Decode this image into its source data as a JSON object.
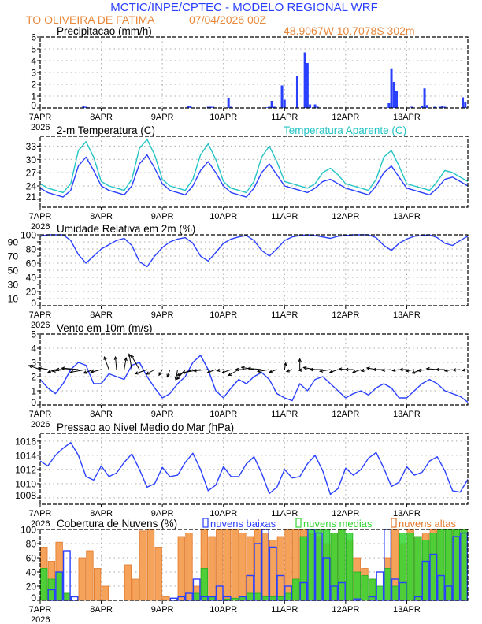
{
  "header": {
    "title": "MCTIC/INPE/CPTEC - MODELO REGIONAL WRF",
    "station": "TO OLIVEIRA DE FATIMA",
    "run": "07/04/2026 00Z",
    "location": "48.9067W 10.7078S 302m"
  },
  "colors": {
    "blue": "#2a40ff",
    "cyan": "#22c4c4",
    "orange_fill": "#f5a25a",
    "orange_edge": "#e2782a",
    "green": "#33d633",
    "black": "#000000",
    "grid": "#aaaaaa"
  },
  "x_axis": {
    "days": [
      "7APR",
      "8APR",
      "9APR",
      "10APR",
      "11APR",
      "12APR",
      "13APR"
    ],
    "year": "2026",
    "hours_total": 168,
    "step_hours": 3
  },
  "chart_data": [
    {
      "type": "bar",
      "title": "Precipitacao (mm/h)",
      "ylim": [
        0,
        6
      ],
      "yticks": [
        0,
        1,
        2,
        3,
        4,
        5,
        6
      ],
      "bars": [
        [
          17,
          0.2
        ],
        [
          18,
          0.1
        ],
        [
          19,
          0.05
        ],
        [
          58,
          0.15
        ],
        [
          59,
          0.2
        ],
        [
          66,
          0.1
        ],
        [
          67,
          0.1
        ],
        [
          68,
          0.1
        ],
        [
          74,
          0.85
        ],
        [
          75,
          0.1
        ],
        [
          89,
          0.05
        ],
        [
          90,
          0.1
        ],
        [
          91,
          0.6
        ],
        [
          92,
          0.1
        ],
        [
          95,
          1.9
        ],
        [
          96,
          0.7
        ],
        [
          101,
          2.7
        ],
        [
          104,
          4.7
        ],
        [
          105,
          3.8
        ],
        [
          106,
          0.3
        ],
        [
          108,
          0.3
        ],
        [
          109,
          0.1
        ],
        [
          134,
          0.05
        ],
        [
          137,
          0.4
        ],
        [
          138,
          3.35
        ],
        [
          139,
          2.2
        ],
        [
          140,
          1.45
        ],
        [
          146,
          0.1
        ],
        [
          150,
          0.2
        ],
        [
          151,
          1.65
        ],
        [
          152,
          0.25
        ],
        [
          155,
          0.1
        ],
        [
          157,
          0.1
        ],
        [
          158,
          0.2
        ],
        [
          159,
          0.1
        ],
        [
          166,
          0.9
        ],
        [
          167,
          0.5
        ]
      ]
    },
    {
      "type": "line",
      "title": "2-m Temperatura (C)",
      "legend2": "Temperatura Aparente (C)",
      "ylim": [
        19.2,
        35.2
      ],
      "yticks": [
        21,
        24,
        27,
        30,
        33
      ],
      "series": [
        {
          "name": "2-m Temperatura (C)",
          "values": [
            23.5,
            22.5,
            22,
            21.5,
            23,
            28.5,
            30.5,
            27.5,
            24,
            23,
            22.5,
            22,
            24,
            29,
            31,
            28,
            24.5,
            23,
            22.5,
            22,
            24,
            27.5,
            29.5,
            27,
            24,
            22.5,
            22,
            21.5,
            23.5,
            27,
            29,
            26.5,
            24,
            23.5,
            23,
            22.5,
            23.5,
            25,
            25.5,
            24.5,
            23.5,
            23,
            22.5,
            22,
            24,
            27,
            28.5,
            26,
            23.5,
            23,
            22.5,
            22,
            23.5,
            25.5,
            26,
            25,
            24
          ]
        },
        {
          "name": "Temperatura Aparente (C)",
          "values": [
            24.5,
            23.5,
            23,
            22.5,
            24.5,
            32,
            34,
            30.5,
            25,
            24,
            23.5,
            23,
            25.5,
            32.5,
            34.5,
            31,
            25.5,
            24,
            23.5,
            23,
            25.5,
            31,
            33.5,
            30,
            25,
            23.5,
            23,
            22.5,
            25,
            30.5,
            33,
            29.5,
            25,
            24.5,
            24,
            23.5,
            24.5,
            27,
            28,
            26.5,
            24.5,
            24,
            23.5,
            23,
            25.5,
            30.5,
            32,
            28.5,
            24.5,
            24,
            23.5,
            23,
            25,
            27.5,
            27,
            26,
            25
          ]
        }
      ]
    },
    {
      "type": "line",
      "title": "Umidade Relativa em 2m (%)",
      "ylim": [
        0,
        100
      ],
      "yticks": [
        0,
        10,
        20,
        30,
        40,
        50,
        60,
        70,
        80,
        90,
        100
      ],
      "values": [
        98,
        100,
        100,
        100,
        92,
        72,
        60,
        70,
        80,
        86,
        92,
        95,
        85,
        62,
        55,
        70,
        82,
        90,
        94,
        96,
        88,
        70,
        63,
        75,
        88,
        94,
        97,
        99,
        92,
        78,
        70,
        80,
        92,
        97,
        99,
        100,
        99,
        97,
        95,
        98,
        99,
        100,
        100,
        100,
        96,
        85,
        78,
        88,
        94,
        98,
        99,
        100,
        96,
        88,
        85,
        92,
        98
      ]
    },
    {
      "type": "line",
      "title": "Vento em 10m (m/s)",
      "ylim": [
        0,
        5
      ],
      "yticks": [
        0,
        1,
        2,
        3,
        4,
        5
      ],
      "values": [
        1.8,
        1.2,
        0.8,
        1.5,
        2.5,
        3,
        2.8,
        1.5,
        1.5,
        2.2,
        2.0,
        1.8,
        2.8,
        3.0,
        2.0,
        1.2,
        0.5,
        0.8,
        1.5,
        2.0,
        3.0,
        3.5,
        2.5,
        1.0,
        0.5,
        1.2,
        1.8,
        1.5,
        2.0,
        2.3,
        1.8,
        0.8,
        0.5,
        0.3,
        1.5,
        1.0,
        1.8,
        2.0,
        1.5,
        1.0,
        0.5,
        0.8,
        1.0,
        0.7,
        1.2,
        1.5,
        1.2,
        0.5,
        0.5,
        1.0,
        1.5,
        1.8,
        1.5,
        1.0,
        0.8,
        0.6,
        0.2
      ],
      "arrow_angle_deg": [
        160,
        170,
        200,
        190,
        180,
        175,
        190,
        200,
        195,
        110,
        95,
        80,
        100,
        120,
        200,
        210,
        240,
        250,
        260,
        230,
        200,
        190,
        185,
        200,
        190,
        200,
        210,
        180,
        170,
        175,
        190,
        200,
        80,
        200,
        90,
        185,
        170,
        180,
        190,
        200,
        175,
        180,
        200,
        190,
        170,
        180,
        185,
        190,
        180,
        190,
        200,
        185,
        175,
        180,
        190,
        185,
        190
      ]
    },
    {
      "type": "line",
      "title": "Pressao ao Nivel Medio do Mar (hPa)",
      "ylim": [
        1007.1,
        1017.1
      ],
      "yticks": [
        1008,
        1010,
        1012,
        1014,
        1016
      ],
      "values": [
        1013.2,
        1012.5,
        1014,
        1015,
        1015.8,
        1014,
        1011,
        1010.5,
        1012.5,
        1011,
        1011.5,
        1013,
        1014.2,
        1012,
        1009.5,
        1010,
        1012.3,
        1011,
        1011.2,
        1013,
        1014.3,
        1012,
        1009,
        1009.8,
        1012.4,
        1011,
        1011,
        1012.8,
        1013.8,
        1011.5,
        1008.6,
        1009.5,
        1012,
        1010.8,
        1011,
        1012.8,
        1014,
        1011.8,
        1008.5,
        1009.3,
        1012.2,
        1011.2,
        1012,
        1013.6,
        1014.4,
        1012.2,
        1009.6,
        1010.2,
        1012.4,
        1011.2,
        1011.6,
        1013.2,
        1013.8,
        1011.8,
        1009,
        1008.8,
        1010.6
      ]
    },
    {
      "type": "bar",
      "title": "Cobertura de Nuvens (%)",
      "ylim": [
        0,
        100
      ],
      "yticks": [
        0,
        20,
        40,
        60,
        80,
        100
      ],
      "series": [
        {
          "name": "nuvens altas",
          "values": [
            75,
            55,
            82,
            10,
            0,
            60,
            70,
            45,
            20,
            0,
            0,
            50,
            30,
            98,
            100,
            75,
            5,
            0,
            90,
            95,
            20,
            100,
            90,
            100,
            100,
            100,
            95,
            90,
            100,
            95,
            85,
            90,
            100,
            100,
            100,
            95,
            90,
            80,
            95,
            100,
            85,
            60,
            45,
            30,
            0,
            60,
            100,
            80,
            100,
            90,
            95,
            100,
            100,
            100,
            100,
            100
          ]
        },
        {
          "name": "nuvens medias",
          "values": [
            45,
            30,
            40,
            10,
            0,
            0,
            0,
            0,
            0,
            0,
            0,
            0,
            0,
            0,
            0,
            0,
            0,
            0,
            0,
            0,
            10,
            45,
            5,
            0,
            2,
            3,
            5,
            10,
            10,
            5,
            5,
            5,
            10,
            30,
            90,
            100,
            100,
            100,
            95,
            100,
            95,
            40,
            35,
            30,
            20,
            45,
            20,
            95,
            95,
            90,
            85,
            95,
            100,
            100,
            100,
            100
          ]
        },
        {
          "name": "nuvens baixas",
          "values": [
            0,
            15,
            40,
            70,
            5,
            0,
            0,
            0,
            0,
            0,
            0,
            0,
            0,
            0,
            0,
            0,
            0,
            3,
            5,
            10,
            30,
            5,
            5,
            20,
            5,
            0,
            5,
            35,
            80,
            100,
            75,
            35,
            20,
            0,
            25,
            100,
            95,
            60,
            20,
            25,
            0,
            2,
            0,
            5,
            40,
            100,
            30,
            25,
            0,
            5,
            55,
            65,
            35,
            20,
            90,
            95
          ]
        }
      ]
    }
  ]
}
